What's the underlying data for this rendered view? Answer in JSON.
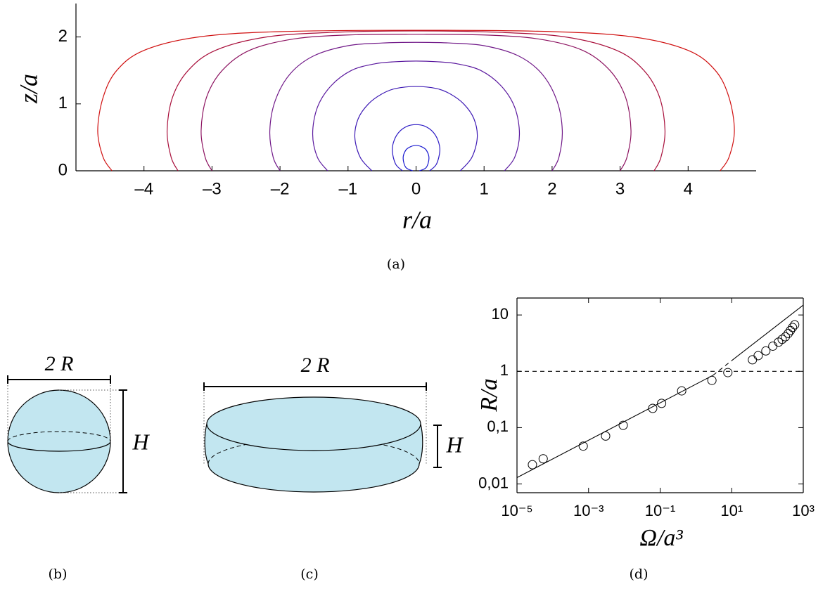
{
  "chart_data": [
    {
      "type": "line",
      "xlabel": "r/a",
      "ylabel": "z/a",
      "xlim": [
        -5,
        5
      ],
      "ylim": [
        0,
        2.5
      ],
      "xticks": [
        {
          "value": -4,
          "label": "–4"
        },
        {
          "value": -3,
          "label": "–3"
        },
        {
          "value": -2,
          "label": "–2"
        },
        {
          "value": -1,
          "label": "–1"
        },
        0,
        1,
        2,
        3,
        4
      ],
      "yticks": [
        0,
        1,
        2
      ],
      "box": false,
      "series": [
        {
          "color": "#1a1ad0",
          "x": [
            -0.05,
            -0.15,
            -0.19,
            -0.15,
            -0.08,
            0,
            0.08,
            0.15,
            0.19,
            0.15,
            0.05
          ],
          "y": [
            0,
            0.05,
            0.19,
            0.31,
            0.36,
            0.38,
            0.36,
            0.31,
            0.19,
            0.05,
            0
          ]
        },
        {
          "color": "#2a18c4",
          "x": [
            -0.2,
            -0.3,
            -0.35,
            -0.32,
            -0.24,
            -0.12,
            0,
            0.12,
            0.24,
            0.32,
            0.35,
            0.3,
            0.2
          ],
          "y": [
            0,
            0.1,
            0.3,
            0.46,
            0.59,
            0.67,
            0.69,
            0.67,
            0.59,
            0.46,
            0.3,
            0.1,
            0
          ]
        },
        {
          "color": "#3c18b4",
          "x": [
            -0.65,
            -0.82,
            -0.9,
            -0.85,
            -0.7,
            -0.5,
            -0.3,
            0,
            0.3,
            0.5,
            0.7,
            0.85,
            0.9,
            0.82,
            0.65
          ],
          "y": [
            0,
            0.2,
            0.5,
            0.78,
            1.0,
            1.15,
            1.23,
            1.26,
            1.23,
            1.15,
            1.0,
            0.78,
            0.5,
            0.2,
            0
          ]
        },
        {
          "color": "#5a189e",
          "x": [
            -1.3,
            -1.45,
            -1.52,
            -1.45,
            -1.25,
            -0.95,
            -0.6,
            -0.3,
            0,
            0.3,
            0.6,
            0.95,
            1.25,
            1.45,
            1.52,
            1.45,
            1.3
          ],
          "y": [
            0,
            0.2,
            0.55,
            0.95,
            1.27,
            1.5,
            1.6,
            1.63,
            1.64,
            1.63,
            1.6,
            1.5,
            1.27,
            0.95,
            0.55,
            0.2,
            0
          ]
        },
        {
          "color": "#701888",
          "x": [
            -2,
            -2.1,
            -2.15,
            -2.07,
            -1.85,
            -1.5,
            -1,
            -0.5,
            0,
            0.5,
            1,
            1.5,
            1.85,
            2.07,
            2.15,
            2.1,
            2
          ],
          "y": [
            0,
            0.2,
            0.6,
            1.05,
            1.45,
            1.72,
            1.87,
            1.91,
            1.92,
            1.91,
            1.87,
            1.72,
            1.45,
            1.05,
            0.6,
            0.2,
            0
          ]
        },
        {
          "color": "#8c1260",
          "x": [
            -3,
            -3.1,
            -3.16,
            -3.08,
            -2.85,
            -2.45,
            -1.8,
            -1,
            0,
            1,
            1.8,
            2.45,
            2.85,
            3.08,
            3.16,
            3.1,
            3
          ],
          "y": [
            0,
            0.2,
            0.6,
            1.1,
            1.5,
            1.8,
            1.97,
            2.03,
            2.04,
            2.03,
            1.97,
            1.8,
            1.5,
            1.1,
            0.6,
            0.2,
            0
          ]
        },
        {
          "color": "#a80e3a",
          "x": [
            -3.5,
            -3.6,
            -3.66,
            -3.58,
            -3.35,
            -2.95,
            -2.2,
            -1.2,
            0,
            1.2,
            2.2,
            2.95,
            3.35,
            3.58,
            3.66,
            3.6,
            3.5
          ],
          "y": [
            0,
            0.2,
            0.6,
            1.1,
            1.5,
            1.8,
            2.0,
            2.07,
            2.09,
            2.07,
            2.0,
            1.8,
            1.5,
            1.1,
            0.6,
            0.2,
            0
          ]
        },
        {
          "color": "#d01010",
          "x": [
            -4.47,
            -4.6,
            -4.68,
            -4.6,
            -4.4,
            -4.0,
            -3.2,
            -2.0,
            0,
            2.0,
            3.2,
            4.0,
            4.4,
            4.6,
            4.68,
            4.6,
            4.47
          ],
          "y": [
            0,
            0.2,
            0.6,
            1.1,
            1.5,
            1.8,
            2.0,
            2.08,
            2.1,
            2.08,
            2.0,
            1.8,
            1.5,
            1.1,
            0.6,
            0.2,
            0
          ]
        }
      ]
    },
    {
      "type": "scatter",
      "xlabel": "Ω/a³",
      "ylabel": "R/a",
      "xscale": "log",
      "yscale": "log",
      "xlim": [
        1e-05,
        1000
      ],
      "ylim": [
        0.007,
        20
      ],
      "xticks": [
        {
          "value": 1e-05,
          "label": "10⁻⁵"
        },
        {
          "value": 0.001,
          "label": "10⁻³"
        },
        {
          "value": 0.1,
          "label": "10⁻¹"
        },
        {
          "value": 10,
          "label": "10¹"
        },
        {
          "value": 1000,
          "label": "10³"
        }
      ],
      "yticks": [
        {
          "value": 0.01,
          "label": "0,01"
        },
        {
          "value": 0.1,
          "label": "0,1"
        },
        1,
        10
      ],
      "box": true,
      "series": [
        {
          "color": "#000000",
          "style": "markers",
          "x": [
            2.7e-05,
            5.4e-05,
            0.00071,
            0.003,
            0.0093,
            0.062,
            0.11,
            0.4,
            2.8,
            7.8,
            38,
            55,
            90,
            141,
            204,
            257,
            316,
            380,
            437,
            501,
            575
          ],
          "y": [
            0.022,
            0.028,
            0.047,
            0.071,
            0.11,
            0.22,
            0.27,
            0.45,
            0.69,
            0.95,
            1.6,
            1.9,
            2.3,
            2.8,
            3.3,
            3.7,
            4.1,
            4.7,
            5.3,
            6.0,
            6.7
          ]
        },
        {
          "color": "#000000",
          "style": "solid",
          "x": [
            1e-05,
            3
          ],
          "y": [
            0.013,
            0.85
          ]
        },
        {
          "color": "#000000",
          "style": "dashed",
          "x": [
            3,
            10
          ],
          "y": [
            0.85,
            1.55
          ]
        },
        {
          "color": "#000000",
          "style": "solid",
          "x": [
            10,
            1000
          ],
          "y": [
            1.55,
            15
          ]
        },
        {
          "color": "#000000",
          "style": "dashed",
          "x": [
            1e-05,
            1000
          ],
          "y": [
            1,
            1
          ]
        }
      ]
    }
  ],
  "diagrams": {
    "b": {
      "width_label": "2 R",
      "height_label": "H"
    },
    "c": {
      "width_label": "2 R",
      "height_label": "H"
    }
  },
  "captions": [
    "(a)",
    "(b)",
    "(c)",
    "(d)"
  ]
}
